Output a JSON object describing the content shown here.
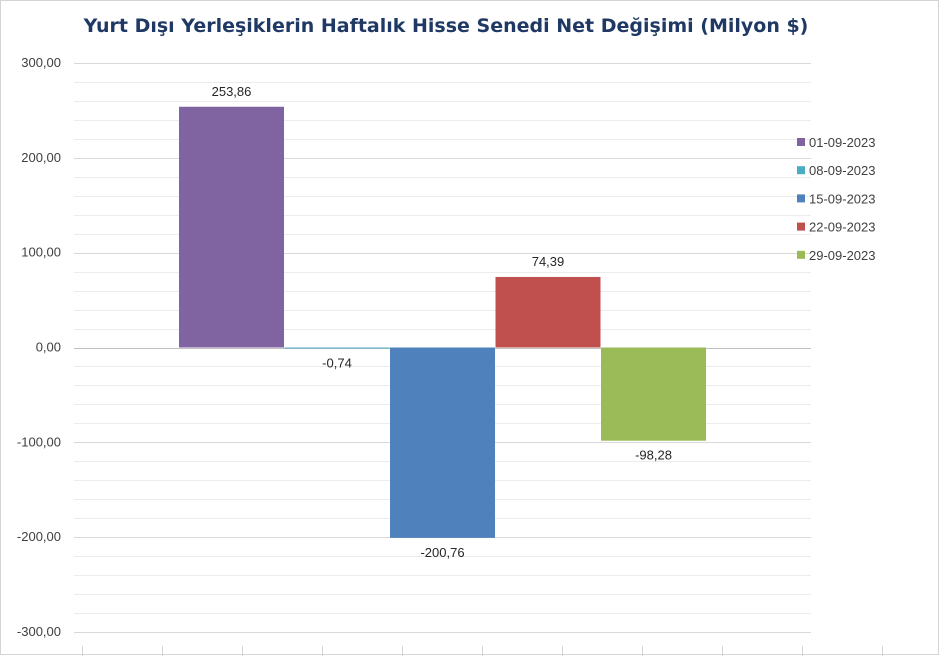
{
  "chart_data": {
    "type": "bar",
    "title": "Yurt Dışı Yerleşiklerin Haftalık Hisse Senedi Net Değişimi (Milyon $)",
    "xlabel": "",
    "ylabel": "",
    "ylim": [
      -300,
      300
    ],
    "ytick_labels": [
      "300,00",
      "200,00",
      "100,00",
      "0,00",
      "-100,00",
      "-200,00",
      "-300,00"
    ],
    "legend_position": "right",
    "grid": true,
    "series": [
      {
        "name": "01-09-2023",
        "value": 253.86,
        "label": "253,86",
        "color": "#8064a2"
      },
      {
        "name": "08-09-2023",
        "value": -0.74,
        "label": "-0,74",
        "color": "#4bacc6"
      },
      {
        "name": "15-09-2023",
        "value": -200.76,
        "label": "-200,76",
        "color": "#4f81bd"
      },
      {
        "name": "22-09-2023",
        "value": 74.39,
        "label": "74,39",
        "color": "#c0504d"
      },
      {
        "name": "29-09-2023",
        "value": -98.28,
        "label": "-98,28",
        "color": "#9bbb59"
      }
    ]
  }
}
